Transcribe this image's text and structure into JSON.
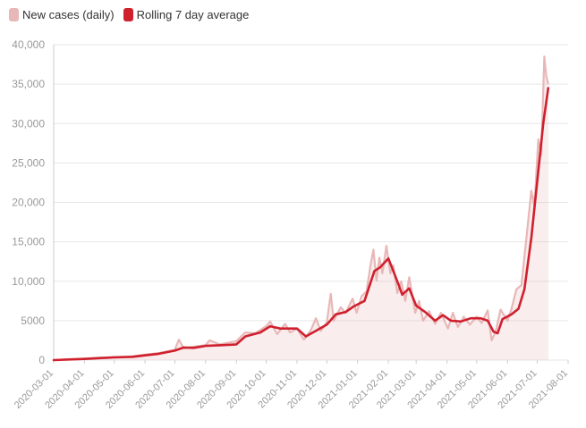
{
  "legend": {
    "daily_label": "New cases (daily)",
    "avg_label": "Rolling 7 day average"
  },
  "colors": {
    "daily": "#e8b7b7",
    "avg": "#d0202e",
    "grid": "#e6e6e6",
    "axis_text": "#999999"
  },
  "chart_data": {
    "type": "line",
    "title": "",
    "xlabel": "",
    "ylabel": "",
    "ylim": [
      0,
      40000
    ],
    "xlim": [
      "2020-03-01",
      "2021-08-01"
    ],
    "grid": true,
    "legend_position": "top-left",
    "y_ticks": [
      0,
      5000,
      10000,
      15000,
      20000,
      25000,
      30000,
      35000,
      40000
    ],
    "y_tick_labels": [
      "0",
      "5000",
      "10,000",
      "15,000",
      "20,000",
      "25,000",
      "30,000",
      "35,000",
      "40,000"
    ],
    "x_ticks": [
      "2020-03-01",
      "2020-04-01",
      "2020-05-01",
      "2020-06-01",
      "2020-07-01",
      "2020-08-01",
      "2020-09-01",
      "2020-10-01",
      "2020-11-01",
      "2020-12-01",
      "2021-01-01",
      "2021-02-01",
      "2021-03-01",
      "2021-04-01",
      "2021-05-01",
      "2021-06-01",
      "2021-07-01",
      "2021-08-01"
    ],
    "series": [
      {
        "name": "New cases (daily)",
        "style": "area-spiky",
        "points": [
          [
            "2020-03-01",
            0
          ],
          [
            "2020-03-15",
            100
          ],
          [
            "2020-04-01",
            180
          ],
          [
            "2020-04-15",
            300
          ],
          [
            "2020-05-01",
            350
          ],
          [
            "2020-05-15",
            420
          ],
          [
            "2020-06-01",
            700
          ],
          [
            "2020-06-15",
            900
          ],
          [
            "2020-07-01",
            1300
          ],
          [
            "2020-07-05",
            2600
          ],
          [
            "2020-07-10",
            1500
          ],
          [
            "2020-07-20",
            1700
          ],
          [
            "2020-08-01",
            1900
          ],
          [
            "2020-08-05",
            2500
          ],
          [
            "2020-08-15",
            2000
          ],
          [
            "2020-09-01",
            2400
          ],
          [
            "2020-09-10",
            3500
          ],
          [
            "2020-09-20",
            3400
          ],
          [
            "2020-10-01",
            4300
          ],
          [
            "2020-10-05",
            4900
          ],
          [
            "2020-10-12",
            3300
          ],
          [
            "2020-10-20",
            4600
          ],
          [
            "2020-10-25",
            3500
          ],
          [
            "2020-11-01",
            4000
          ],
          [
            "2020-11-08",
            2600
          ],
          [
            "2020-11-15",
            3800
          ],
          [
            "2020-11-20",
            5300
          ],
          [
            "2020-11-25",
            3700
          ],
          [
            "2020-12-01",
            4800
          ],
          [
            "2020-12-05",
            8400
          ],
          [
            "2020-12-08",
            5000
          ],
          [
            "2020-12-15",
            6700
          ],
          [
            "2020-12-20",
            6000
          ],
          [
            "2020-12-27",
            7800
          ],
          [
            "2020-12-31",
            6000
          ],
          [
            "2021-01-05",
            8100
          ],
          [
            "2021-01-10",
            8700
          ],
          [
            "2021-01-14",
            12000
          ],
          [
            "2021-01-17",
            14000
          ],
          [
            "2021-01-20",
            10100
          ],
          [
            "2021-01-23",
            13000
          ],
          [
            "2021-01-26",
            11000
          ],
          [
            "2021-01-30",
            14500
          ],
          [
            "2021-02-03",
            11000
          ],
          [
            "2021-02-06",
            12000
          ],
          [
            "2021-02-10",
            8500
          ],
          [
            "2021-02-14",
            10000
          ],
          [
            "2021-02-18",
            7500
          ],
          [
            "2021-02-22",
            10500
          ],
          [
            "2021-02-28",
            6000
          ],
          [
            "2021-03-04",
            7500
          ],
          [
            "2021-03-08",
            5000
          ],
          [
            "2021-03-14",
            6200
          ],
          [
            "2021-03-20",
            4600
          ],
          [
            "2021-03-26",
            6000
          ],
          [
            "2021-04-02",
            4000
          ],
          [
            "2021-04-07",
            6000
          ],
          [
            "2021-04-12",
            4200
          ],
          [
            "2021-04-18",
            5500
          ],
          [
            "2021-04-24",
            4500
          ],
          [
            "2021-05-01",
            5500
          ],
          [
            "2021-05-06",
            4700
          ],
          [
            "2021-05-12",
            6300
          ],
          [
            "2021-05-16",
            2500
          ],
          [
            "2021-05-20",
            3600
          ],
          [
            "2021-05-25",
            6400
          ],
          [
            "2021-06-01",
            5000
          ],
          [
            "2021-06-05",
            6500
          ],
          [
            "2021-06-10",
            9000
          ],
          [
            "2021-06-15",
            9500
          ],
          [
            "2021-06-20",
            15500
          ],
          [
            "2021-06-25",
            21500
          ],
          [
            "2021-06-28",
            19500
          ],
          [
            "2021-07-02",
            28000
          ],
          [
            "2021-07-05",
            26000
          ],
          [
            "2021-07-08",
            38500
          ],
          [
            "2021-07-10",
            36000
          ],
          [
            "2021-07-12",
            35000
          ]
        ]
      },
      {
        "name": "Rolling 7 day average",
        "style": "line",
        "points": [
          [
            "2020-03-01",
            0
          ],
          [
            "2020-04-01",
            150
          ],
          [
            "2020-05-01",
            350
          ],
          [
            "2020-05-20",
            420
          ],
          [
            "2020-06-01",
            600
          ],
          [
            "2020-06-15",
            800
          ],
          [
            "2020-07-01",
            1200
          ],
          [
            "2020-07-10",
            1600
          ],
          [
            "2020-07-20",
            1550
          ],
          [
            "2020-08-01",
            1800
          ],
          [
            "2020-08-20",
            1900
          ],
          [
            "2020-09-01",
            2000
          ],
          [
            "2020-09-10",
            3000
          ],
          [
            "2020-09-25",
            3500
          ],
          [
            "2020-10-05",
            4300
          ],
          [
            "2020-10-15",
            4000
          ],
          [
            "2020-11-01",
            4000
          ],
          [
            "2020-11-10",
            3000
          ],
          [
            "2020-11-20",
            3700
          ],
          [
            "2020-12-01",
            4500
          ],
          [
            "2020-12-10",
            5800
          ],
          [
            "2020-12-20",
            6100
          ],
          [
            "2020-12-28",
            6800
          ],
          [
            "2021-01-08",
            7500
          ],
          [
            "2021-01-18",
            11300
          ],
          [
            "2021-01-24",
            11800
          ],
          [
            "2021-02-01",
            12900
          ],
          [
            "2021-02-10",
            10000
          ],
          [
            "2021-02-15",
            8300
          ],
          [
            "2021-02-22",
            9100
          ],
          [
            "2021-03-01",
            6900
          ],
          [
            "2021-03-10",
            6100
          ],
          [
            "2021-03-20",
            5000
          ],
          [
            "2021-03-28",
            5700
          ],
          [
            "2021-04-05",
            5000
          ],
          [
            "2021-04-15",
            4900
          ],
          [
            "2021-04-25",
            5300
          ],
          [
            "2021-05-05",
            5300
          ],
          [
            "2021-05-12",
            5000
          ],
          [
            "2021-05-18",
            3600
          ],
          [
            "2021-05-22",
            3400
          ],
          [
            "2021-05-27",
            5200
          ],
          [
            "2021-06-05",
            5800
          ],
          [
            "2021-06-12",
            6500
          ],
          [
            "2021-06-18",
            9000
          ],
          [
            "2021-06-25",
            15500
          ],
          [
            "2021-07-02",
            24000
          ],
          [
            "2021-07-07",
            30000
          ],
          [
            "2021-07-12",
            34500
          ]
        ]
      }
    ]
  }
}
